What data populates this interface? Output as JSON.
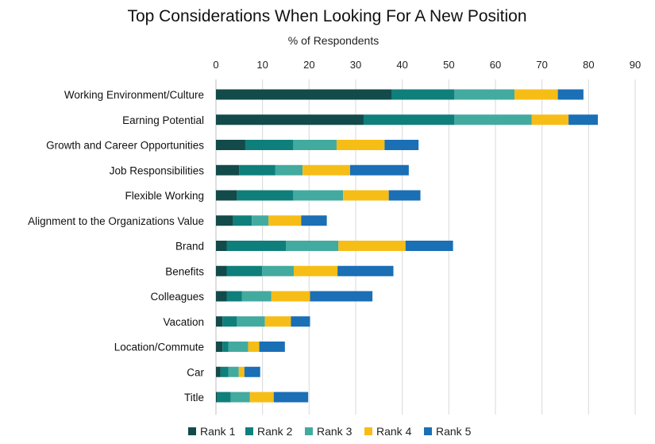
{
  "chart_data": {
    "type": "bar",
    "orientation": "horizontal",
    "stacked": true,
    "title": "Top Considerations When Looking For A New Position",
    "xlabel": "% of Respondents",
    "ylabel": "",
    "xlim": [
      0,
      90
    ],
    "xticks": [
      0,
      10,
      20,
      30,
      40,
      50,
      60,
      70,
      80,
      90
    ],
    "grid": true,
    "legend_position": "bottom",
    "categories": [
      "Working Environment/Culture",
      "Earning Potential",
      "Growth and Career Opportunities",
      "Job Responsibilities",
      "Flexible Working",
      "Alignment to the Organizations Value",
      "Brand",
      "Benefits",
      "Colleagues",
      "Vacation",
      "Location/Commute",
      "Car",
      "Title"
    ],
    "series": [
      {
        "name": "Rank 1",
        "color": "#134a4a",
        "values": [
          37.8,
          31.7,
          6.3,
          5.0,
          4.5,
          3.7,
          2.3,
          2.3,
          2.3,
          1.4,
          1.4,
          1.0,
          0.3
        ]
      },
      {
        "name": "Rank 2",
        "color": "#0f7f7b",
        "values": [
          13.4,
          19.5,
          10.3,
          7.7,
          12.1,
          4.0,
          12.7,
          7.6,
          3.3,
          3.1,
          1.3,
          1.7,
          2.9
        ]
      },
      {
        "name": "Rank 3",
        "color": "#43aaa0",
        "values": [
          12.9,
          16.6,
          9.3,
          5.9,
          10.7,
          3.6,
          11.3,
          6.8,
          6.3,
          6.0,
          4.2,
          2.2,
          4.1
        ]
      },
      {
        "name": "Rank 4",
        "color": "#f7bd17",
        "values": [
          9.3,
          7.9,
          10.3,
          10.2,
          9.8,
          7.0,
          14.4,
          9.4,
          8.3,
          5.6,
          2.4,
          1.2,
          5.1
        ]
      },
      {
        "name": "Rank 5",
        "color": "#1a6fb5",
        "values": [
          5.5,
          6.3,
          7.3,
          12.6,
          6.8,
          5.5,
          10.2,
          12.0,
          13.4,
          4.1,
          5.5,
          3.4,
          7.4
        ]
      }
    ]
  }
}
